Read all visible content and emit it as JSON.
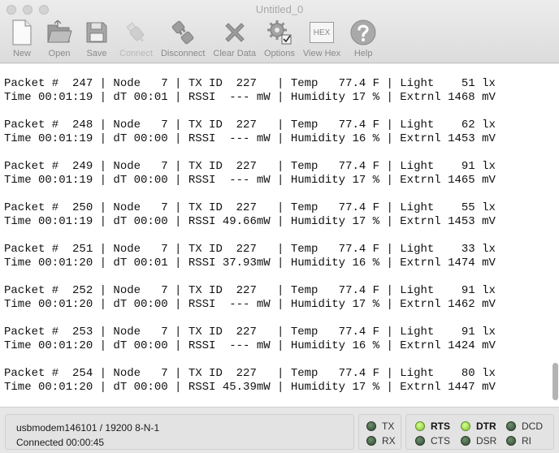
{
  "window": {
    "title": "Untitled_0"
  },
  "toolbar": {
    "new": "New",
    "open": "Open",
    "save": "Save",
    "connect": "Connect",
    "disconnect": "Disconnect",
    "clear": "Clear Data",
    "options": "Options",
    "hex_icon": "HEX",
    "view_hex": "View Hex",
    "help": "Help"
  },
  "terminal": {
    "packets": [
      {
        "line1": "Packet #  247 | Node   7 | TX ID  227   | Temp   77.4 F | Light    51 lx",
        "line2": "Time 00:01:19 | dT 00:01 | RSSI  --- mW | Humidity 17 % | Extrnl 1468 mV"
      },
      {
        "line1": "Packet #  248 | Node   7 | TX ID  227   | Temp   77.4 F | Light    62 lx",
        "line2": "Time 00:01:19 | dT 00:00 | RSSI  --- mW | Humidity 16 % | Extrnl 1453 mV"
      },
      {
        "line1": "Packet #  249 | Node   7 | TX ID  227   | Temp   77.4 F | Light    91 lx",
        "line2": "Time 00:01:19 | dT 00:00 | RSSI  --- mW | Humidity 17 % | Extrnl 1465 mV"
      },
      {
        "line1": "Packet #  250 | Node   7 | TX ID  227   | Temp   77.4 F | Light    55 lx",
        "line2": "Time 00:01:19 | dT 00:00 | RSSI 49.66mW | Humidity 17 % | Extrnl 1453 mV"
      },
      {
        "line1": "Packet #  251 | Node   7 | TX ID  227   | Temp   77.4 F | Light    33 lx",
        "line2": "Time 00:01:20 | dT 00:01 | RSSI 37.93mW | Humidity 16 % | Extrnl 1474 mV"
      },
      {
        "line1": "Packet #  252 | Node   7 | TX ID  227   | Temp   77.4 F | Light    91 lx",
        "line2": "Time 00:01:20 | dT 00:00 | RSSI  --- mW | Humidity 17 % | Extrnl 1462 mV"
      },
      {
        "line1": "Packet #  253 | Node   7 | TX ID  227   | Temp   77.4 F | Light    91 lx",
        "line2": "Time 00:01:20 | dT 00:00 | RSSI  --- mW | Humidity 16 % | Extrnl 1424 mV"
      },
      {
        "line1": "Packet #  254 | Node   7 | TX ID  227   | Temp   77.4 F | Light    80 lx",
        "line2": "Time 00:01:20 | dT 00:00 | RSSI 45.39mW | Humidity 17 % | Extrnl 1447 mV"
      }
    ]
  },
  "status": {
    "port": "usbmodem146101 / 19200 8-N-1",
    "connection": "Connected 00:00:45",
    "signals": {
      "tx": "TX",
      "rx": "RX",
      "rts": "RTS",
      "cts": "CTS",
      "dtr": "DTR",
      "dsr": "DSR",
      "dcd": "DCD",
      "ri": "RI"
    },
    "colors": {
      "led_on": "#9be14f",
      "led_off": "#3d5a3d"
    }
  }
}
